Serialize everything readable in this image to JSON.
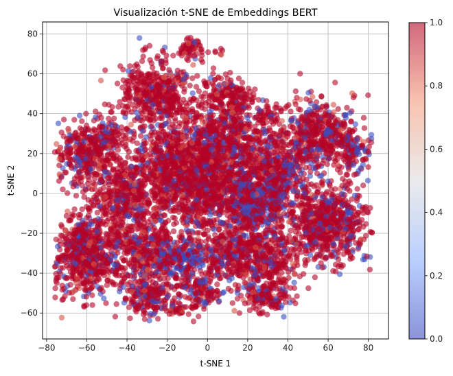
{
  "chart_data": {
    "type": "scatter",
    "title": "Visualización t-SNE de Embeddings BERT",
    "xlabel": "t-SNE 1",
    "ylabel": "t-SNE 2",
    "xlim": [
      -82,
      90
    ],
    "ylim": [
      -73,
      86
    ],
    "xticks": [
      -80,
      -60,
      -40,
      -20,
      0,
      20,
      40,
      60,
      80
    ],
    "yticks": [
      -60,
      -40,
      -20,
      0,
      20,
      40,
      60,
      80
    ],
    "xtick_labels": [
      "−80",
      "−60",
      "−40",
      "−20",
      "0",
      "20",
      "40",
      "60",
      "80"
    ],
    "ytick_labels": [
      "−60",
      "−40",
      "−20",
      "0",
      "20",
      "40",
      "60",
      "80"
    ],
    "grid": true,
    "colormap": "coolwarm",
    "alpha": 0.6,
    "colorbar": {
      "range": [
        0.0,
        1.0
      ],
      "ticks": [
        0.0,
        0.2,
        0.4,
        0.6,
        0.8,
        1.0
      ],
      "tick_labels": [
        "0.0",
        "0.2",
        "0.4",
        "0.6",
        "0.8",
        "1.0"
      ]
    },
    "clusters": [
      {
        "cx": -8,
        "cy": 73,
        "sx": 3,
        "sy": 3,
        "n": 60,
        "blue_frac": 0.1
      },
      {
        "cx": 6,
        "cy": 71,
        "sx": 1,
        "sy": 1,
        "n": 6,
        "blue_frac": 0.0
      },
      {
        "cx": -25,
        "cy": 50,
        "sx": 9,
        "sy": 8,
        "n": 500,
        "blue_frac": 0.08
      },
      {
        "cx": 10,
        "cy": 48,
        "sx": 7,
        "sy": 6,
        "n": 200,
        "blue_frac": 0.08
      },
      {
        "cx": 30,
        "cy": 38,
        "sx": 5,
        "sy": 5,
        "n": 60,
        "blue_frac": 0.1
      },
      {
        "cx": 55,
        "cy": 30,
        "sx": 10,
        "sy": 8,
        "n": 500,
        "blue_frac": 0.2
      },
      {
        "cx": 72,
        "cy": 20,
        "sx": 5,
        "sy": 5,
        "n": 120,
        "blue_frac": 0.25
      },
      {
        "cx": -60,
        "cy": 20,
        "sx": 8,
        "sy": 8,
        "n": 350,
        "blue_frac": 0.15
      },
      {
        "cx": -50,
        "cy": 30,
        "sx": 6,
        "sy": 5,
        "n": 100,
        "blue_frac": 0.1
      },
      {
        "cx": -15,
        "cy": 15,
        "sx": 10,
        "sy": 10,
        "n": 700,
        "blue_frac": 0.12
      },
      {
        "cx": 10,
        "cy": 25,
        "sx": 10,
        "sy": 10,
        "n": 600,
        "blue_frac": 0.15
      },
      {
        "cx": 35,
        "cy": 10,
        "sx": 8,
        "sy": 8,
        "n": 400,
        "blue_frac": 0.2
      },
      {
        "cx": -40,
        "cy": 0,
        "sx": 10,
        "sy": 10,
        "n": 500,
        "blue_frac": 0.12
      },
      {
        "cx": 0,
        "cy": 0,
        "sx": 12,
        "sy": 10,
        "n": 700,
        "blue_frac": 0.15
      },
      {
        "cx": 25,
        "cy": -5,
        "sx": 8,
        "sy": 8,
        "n": 500,
        "blue_frac": 0.35
      },
      {
        "cx": 60,
        "cy": -15,
        "sx": 10,
        "sy": 10,
        "n": 700,
        "blue_frac": 0.12
      },
      {
        "cx": -60,
        "cy": -30,
        "sx": 9,
        "sy": 10,
        "n": 700,
        "blue_frac": 0.12
      },
      {
        "cx": -30,
        "cy": -30,
        "sx": 8,
        "sy": 8,
        "n": 400,
        "blue_frac": 0.18
      },
      {
        "cx": -12,
        "cy": -32,
        "sx": 5,
        "sy": 5,
        "n": 150,
        "blue_frac": 0.6
      },
      {
        "cx": 10,
        "cy": -30,
        "sx": 10,
        "sy": 8,
        "n": 400,
        "blue_frac": 0.15
      },
      {
        "cx": 30,
        "cy": -35,
        "sx": 8,
        "sy": 8,
        "n": 300,
        "blue_frac": 0.12
      },
      {
        "cx": -30,
        "cy": -52,
        "sx": 6,
        "sy": 5,
        "n": 200,
        "blue_frac": 0.2
      },
      {
        "cx": -5,
        "cy": -50,
        "sx": 6,
        "sy": 5,
        "n": 150,
        "blue_frac": 0.15
      },
      {
        "cx": 28,
        "cy": -52,
        "sx": 6,
        "sy": 4,
        "n": 150,
        "blue_frac": 0.12
      },
      {
        "cx": -15,
        "cy": -58,
        "sx": 3,
        "sy": 2,
        "n": 30,
        "blue_frac": 0.2
      }
    ]
  }
}
